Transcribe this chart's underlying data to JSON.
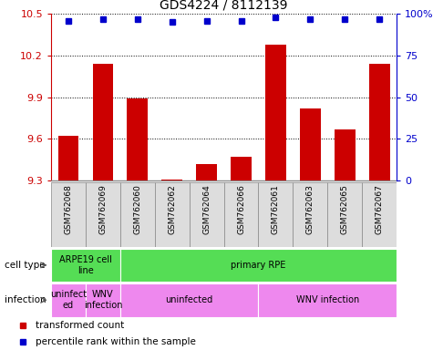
{
  "title": "GDS4224 / 8112139",
  "samples": [
    "GSM762068",
    "GSM762069",
    "GSM762060",
    "GSM762062",
    "GSM762064",
    "GSM762066",
    "GSM762061",
    "GSM762063",
    "GSM762065",
    "GSM762067"
  ],
  "transformed_count": [
    9.62,
    10.14,
    9.89,
    9.305,
    9.42,
    9.47,
    10.28,
    9.82,
    9.67,
    10.14
  ],
  "percentile_rank": [
    96,
    97,
    97,
    95,
    96,
    96,
    98,
    97,
    97,
    97
  ],
  "ylim": [
    9.3,
    10.5
  ],
  "yticks": [
    9.3,
    9.6,
    9.9,
    10.2,
    10.5
  ],
  "y2lim": [
    0,
    100
  ],
  "y2ticks": [
    0,
    25,
    50,
    75,
    100
  ],
  "bar_color": "#cc0000",
  "dot_color": "#0000cc",
  "bar_width": 0.6,
  "cell_type_groups": [
    {
      "text": "ARPE19 cell\nline",
      "start": 0,
      "end": 2,
      "color": "#55dd55"
    },
    {
      "text": "primary RPE",
      "start": 2,
      "end": 10,
      "color": "#55dd55"
    }
  ],
  "infection_groups": [
    {
      "text": "uninfect\ned",
      "start": 0,
      "end": 1,
      "color": "#ee88ee"
    },
    {
      "text": "WNV\ninfection",
      "start": 1,
      "end": 2,
      "color": "#ee88ee"
    },
    {
      "text": "uninfected",
      "start": 2,
      "end": 6,
      "color": "#ee88ee"
    },
    {
      "text": "WNV infection",
      "start": 6,
      "end": 10,
      "color": "#ee88ee"
    }
  ],
  "legend": [
    {
      "color": "#cc0000",
      "label": "transformed count"
    },
    {
      "color": "#0000cc",
      "label": "percentile rank within the sample"
    }
  ],
  "left_axis_color": "#cc0000",
  "right_axis_color": "#0000cc",
  "sample_box_color": "#dddddd",
  "sample_box_border": "#888888"
}
